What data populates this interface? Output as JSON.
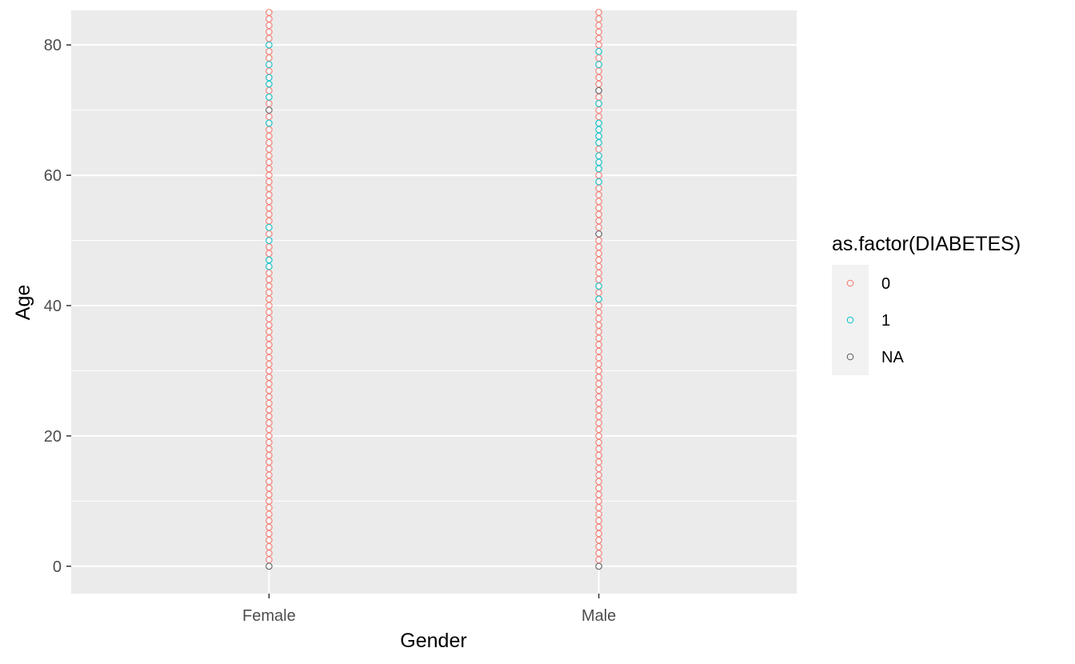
{
  "chart_data": {
    "type": "scatter",
    "xlabel": "Gender",
    "ylabel": "Age",
    "categories": [
      "Female",
      "Male"
    ],
    "ylim": [
      -4.2,
      85.3
    ],
    "y_ticks": [
      0,
      20,
      40,
      60,
      80
    ],
    "y_tick_labels": [
      "0",
      "20",
      "40",
      "60",
      "80"
    ],
    "grid": true,
    "legend": {
      "title": "as.factor(DIABETES)",
      "position": "right",
      "entries": [
        {
          "label": "0",
          "color": "#F8766D"
        },
        {
          "label": "1",
          "color": "#00BFC4"
        },
        {
          "label": "NA",
          "color": "#595959"
        }
      ]
    },
    "series": [
      {
        "category": "Female",
        "level": "0",
        "ages_range": [
          1,
          85
        ],
        "except": [
          46,
          47,
          50,
          52,
          68,
          70,
          72,
          74,
          75,
          77,
          80
        ]
      },
      {
        "category": "Female",
        "level": "1",
        "ages": [
          46,
          47,
          50,
          52,
          68,
          72,
          74,
          75,
          77,
          80
        ]
      },
      {
        "category": "Female",
        "level": "NA",
        "ages": [
          0,
          70
        ]
      },
      {
        "category": "Male",
        "level": "0",
        "ages_range": [
          1,
          85
        ],
        "except": [
          41,
          43,
          51,
          59,
          61,
          62,
          63,
          65,
          66,
          67,
          68,
          71,
          73,
          77,
          79
        ]
      },
      {
        "category": "Male",
        "level": "1",
        "ages": [
          41,
          43,
          59,
          61,
          62,
          63,
          65,
          66,
          67,
          68,
          71,
          77,
          79
        ]
      },
      {
        "category": "Male",
        "level": "NA",
        "ages": [
          0,
          51,
          73
        ]
      }
    ]
  }
}
